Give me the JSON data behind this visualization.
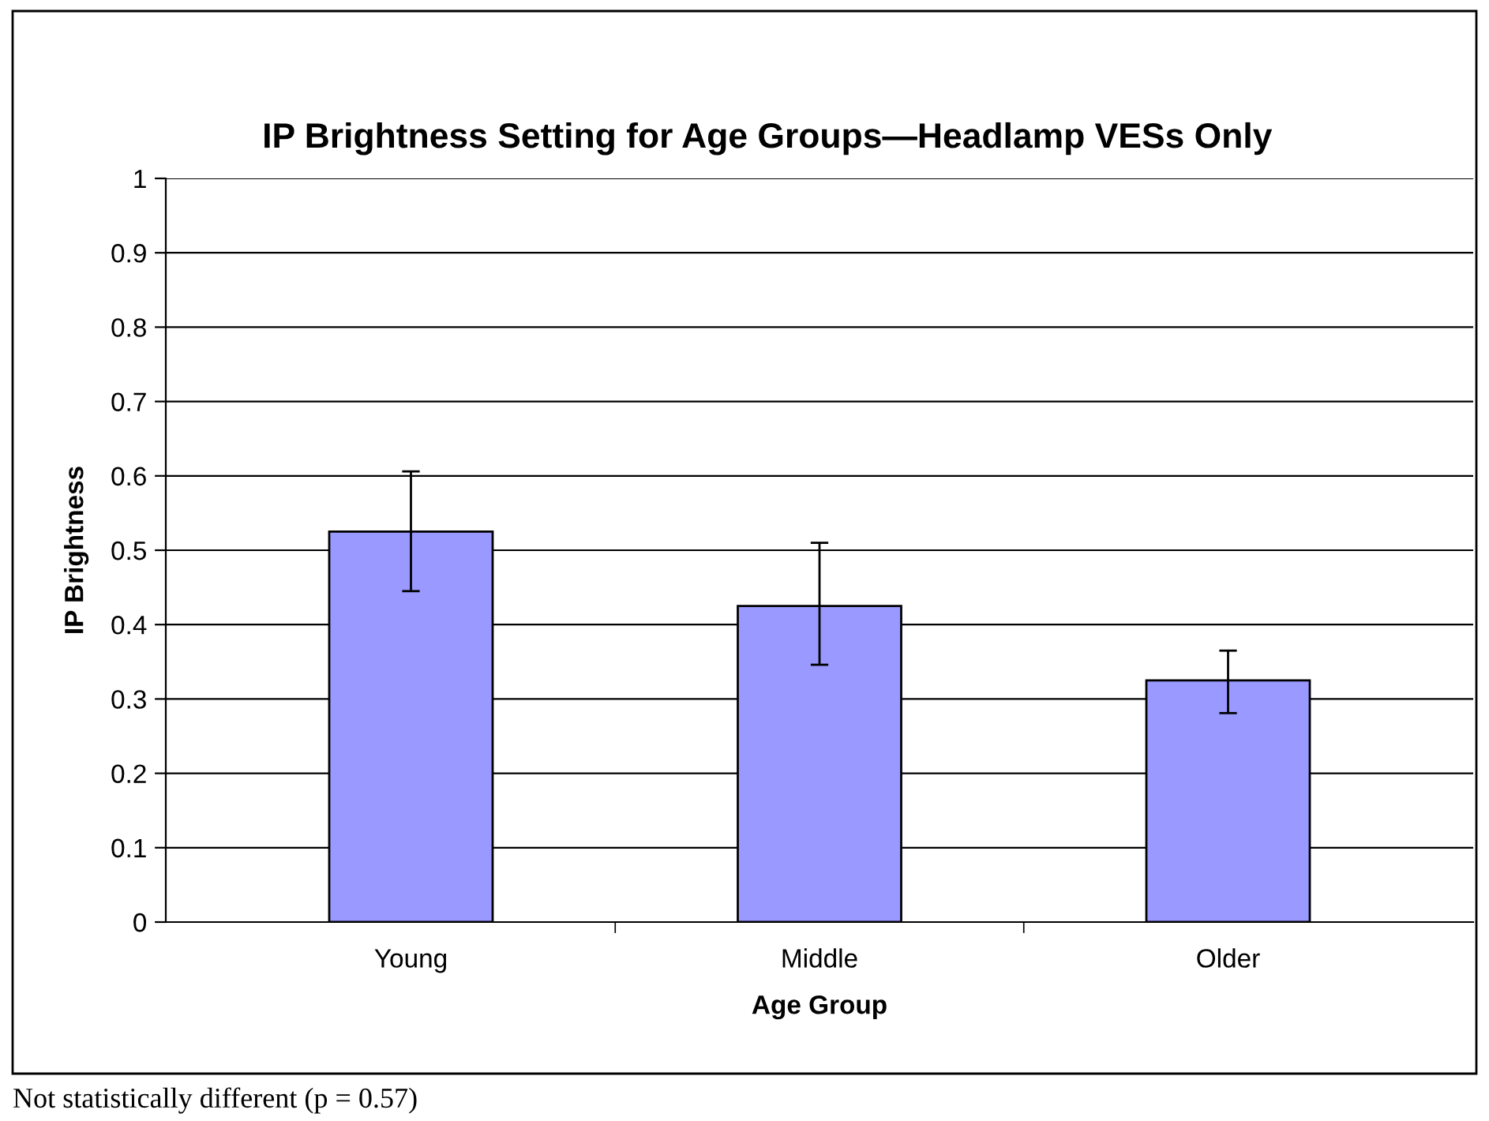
{
  "chart_data": {
    "type": "bar",
    "title": "IP Brightness Setting for Age Groups—Headlamp VESs Only",
    "xlabel": "Age Group",
    "ylabel": "IP Brightness",
    "categories": [
      "Young",
      "Middle",
      "Older"
    ],
    "values": [
      0.525,
      0.425,
      0.325
    ],
    "errors": [
      [
        0.445,
        0.606
      ],
      [
        0.346,
        0.51
      ],
      [
        0.281,
        0.365
      ]
    ],
    "color": "#9999ff",
    "ylim": [
      0,
      1
    ],
    "yticks": [
      0,
      0.1,
      0.2,
      0.3,
      0.4,
      0.5,
      0.6,
      0.7,
      0.8,
      0.9,
      1
    ],
    "grid": "y",
    "annotations": [
      "Not statistically different (p = 0.57)"
    ]
  }
}
